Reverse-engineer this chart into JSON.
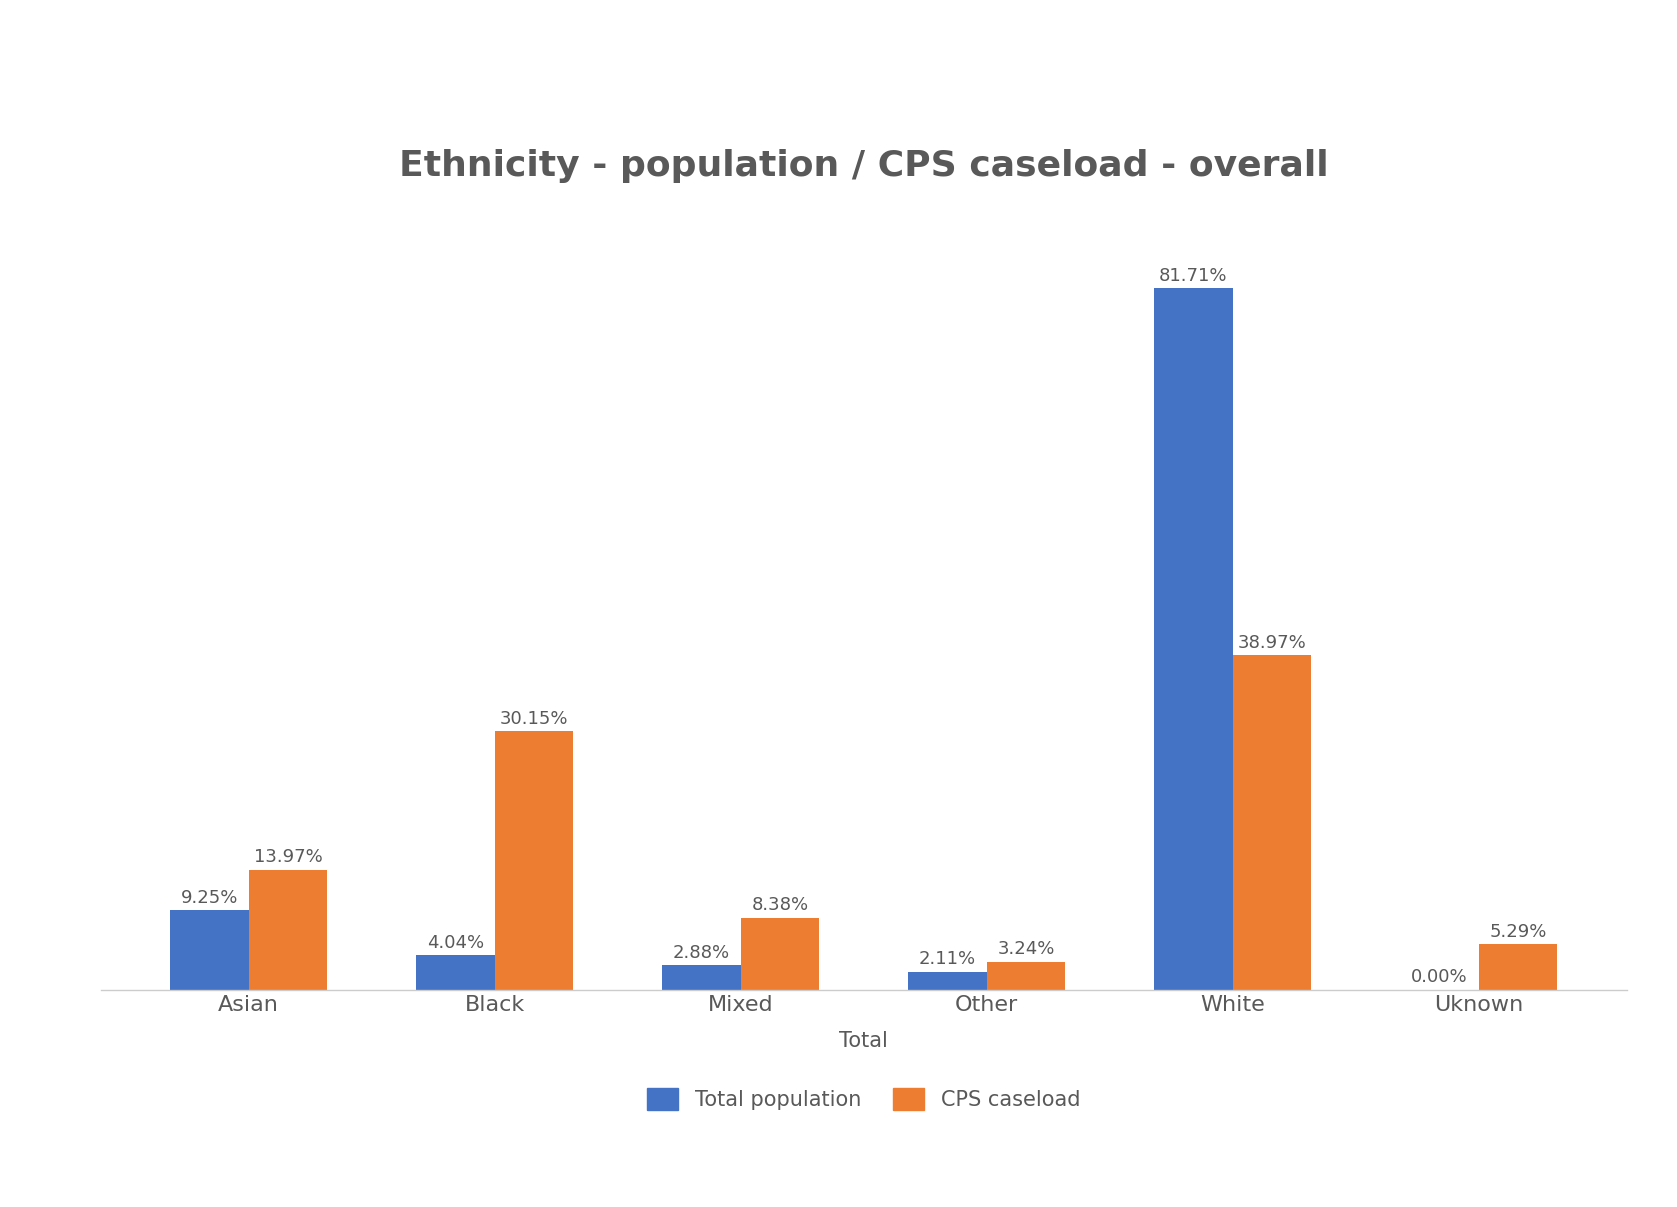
{
  "title": "Ethnicity - population / CPS caseload - overall",
  "categories": [
    "Asian",
    "Black",
    "Mixed",
    "Other",
    "White",
    "Uknown"
  ],
  "total_population": [
    9.25,
    4.04,
    2.88,
    2.11,
    81.71,
    0.0
  ],
  "cps_caseload": [
    13.97,
    30.15,
    8.38,
    3.24,
    38.97,
    5.29
  ],
  "bar_color_pop": "#4472C4",
  "bar_color_cps": "#ED7D31",
  "xlabel": "Total",
  "ylim": [
    0,
    90
  ],
  "legend_pop": "Total population",
  "legend_cps": "CPS caseload",
  "title_fontsize": 26,
  "label_fontsize": 15,
  "tick_fontsize": 16,
  "legend_fontsize": 15,
  "bar_width": 0.32,
  "background_color": "#ffffff",
  "annotation_fontsize": 13,
  "text_color": "#595959"
}
